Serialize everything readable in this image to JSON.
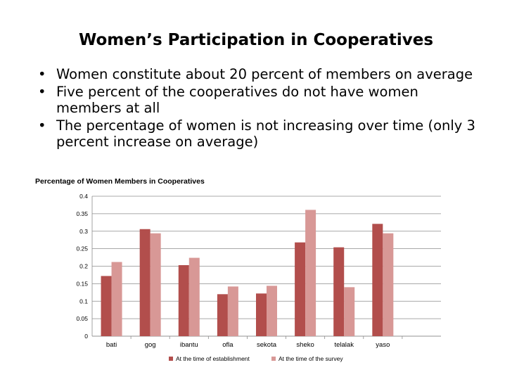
{
  "slide": {
    "title": "Women’s Participation in Cooperatives",
    "bullets": [
      "Women constitute about 20 percent of members on average",
      "Five percent of the cooperatives do not have women members at all",
      "The percentage of women is not increasing over time (only 3 percent increase on average)"
    ]
  },
  "colors": {
    "establishment": "#b24e4c",
    "survey": "#d89896",
    "grid": "#8c8c8c"
  },
  "chart_data": {
    "type": "bar",
    "title": "Percentage of Women Members in Cooperatives",
    "categories": [
      "bati",
      "gog",
      "ibantu",
      "ofla",
      "sekota",
      "sheko",
      "telalak",
      "yaso"
    ],
    "series": [
      {
        "name": "At the time of establishment",
        "values": [
          0.172,
          0.306,
          0.203,
          0.12,
          0.122,
          0.268,
          0.254,
          0.321
        ]
      },
      {
        "name": "At the time of the survey",
        "values": [
          0.212,
          0.294,
          0.224,
          0.142,
          0.144,
          0.361,
          0.14,
          0.294
        ]
      }
    ],
    "ylim": [
      0,
      0.4
    ],
    "yticks": [
      "0",
      "0.05",
      "0.1",
      "0.15",
      "0.2",
      "0.25",
      "0.3",
      "0.35",
      "0.4"
    ],
    "xlabel": "",
    "ylabel": "",
    "grid": true,
    "legend": "bottom"
  }
}
